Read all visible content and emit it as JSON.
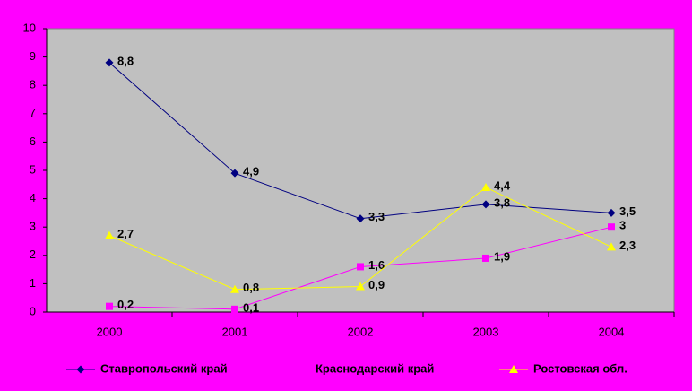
{
  "chart_data": {
    "type": "line",
    "categories": [
      "2000",
      "2001",
      "2002",
      "2003",
      "2004"
    ],
    "series": [
      {
        "name": "Ставропольский край",
        "color": "#000080",
        "marker": "diamond",
        "values": [
          8.8,
          4.9,
          3.3,
          3.8,
          3.5
        ],
        "value_labels": [
          "8,8",
          "4,9",
          "3,3",
          "3,8",
          "3,5"
        ]
      },
      {
        "name": "Краснодарский край",
        "color": "#ff00ff",
        "marker": "square",
        "values": [
          0.2,
          0.1,
          1.6,
          1.9,
          3
        ],
        "value_labels": [
          "0,2",
          "0,1",
          "1,6",
          "1,9",
          "3"
        ]
      },
      {
        "name": "Ростовская обл.",
        "color": "#ffff00",
        "marker": "triangle",
        "values": [
          2.7,
          0.8,
          0.9,
          4.4,
          2.3
        ],
        "value_labels": [
          "2,7",
          "0,8",
          "0,9",
          "4,4",
          "2,3"
        ]
      }
    ],
    "ylim": [
      0,
      10
    ],
    "yticks": [
      0,
      1,
      2,
      3,
      4,
      5,
      6,
      7,
      8,
      9,
      10
    ],
    "legend": "bottom"
  }
}
